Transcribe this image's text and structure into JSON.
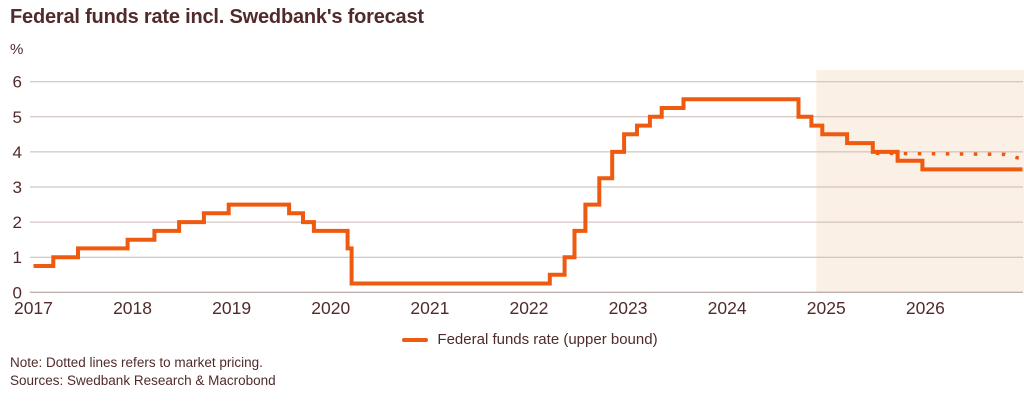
{
  "header": {
    "title": "Federal funds rate incl. Swedbank's forecast",
    "unit_label": "%"
  },
  "legend": {
    "items": [
      {
        "label": "Federal funds rate (upper bound)",
        "style": "solid",
        "color": "#EE5A0F"
      }
    ]
  },
  "notes": {
    "note": "Note: Dotted lines refers to market pricing.",
    "sources": "Sources: Swedbank Research & Macrobond"
  },
  "colors": {
    "accent_orange": "#EE5A0F",
    "text_brown": "#512B2B",
    "gridline": "#C9B9B5",
    "zero_line": "#A5938F",
    "forecast_fill": "#FAF0E5",
    "background": "#FFFFFF"
  },
  "chart_data": {
    "type": "line",
    "title": "Federal funds rate incl. Swedbank's forecast",
    "ylabel": "%",
    "ylim": [
      0,
      6
    ],
    "yticks": [
      0,
      1,
      2,
      3,
      4,
      5,
      6
    ],
    "xticks": [
      2017,
      2018,
      2019,
      2020,
      2021,
      2022,
      2023,
      2024,
      2025,
      2026
    ],
    "x_range": [
      2017.0,
      2026.98
    ],
    "grid": true,
    "legend_position": "bottom-center",
    "forecast_region": {
      "start": 2024.9,
      "end": 2026.98
    },
    "series": [
      {
        "name": "Federal funds rate (upper bound)",
        "style": "solid-step",
        "color": "#EE5A0F",
        "points": [
          [
            2017.0,
            0.75
          ],
          [
            2017.2,
            1.0
          ],
          [
            2017.45,
            1.25
          ],
          [
            2017.95,
            1.5
          ],
          [
            2018.22,
            1.75
          ],
          [
            2018.47,
            2.0
          ],
          [
            2018.72,
            2.25
          ],
          [
            2018.97,
            2.5
          ],
          [
            2019.58,
            2.25
          ],
          [
            2019.72,
            2.0
          ],
          [
            2019.83,
            1.75
          ],
          [
            2020.17,
            1.25
          ],
          [
            2020.21,
            0.25
          ],
          [
            2022.21,
            0.5
          ],
          [
            2022.36,
            1.0
          ],
          [
            2022.46,
            1.75
          ],
          [
            2022.57,
            2.5
          ],
          [
            2022.71,
            3.25
          ],
          [
            2022.84,
            4.0
          ],
          [
            2022.96,
            4.5
          ],
          [
            2023.09,
            4.75
          ],
          [
            2023.22,
            5.0
          ],
          [
            2023.34,
            5.25
          ],
          [
            2023.56,
            5.5
          ],
          [
            2024.72,
            5.0
          ],
          [
            2024.85,
            4.75
          ],
          [
            2024.96,
            4.5
          ],
          [
            2025.21,
            4.25
          ],
          [
            2025.47,
            4.0
          ],
          [
            2025.72,
            3.75
          ],
          [
            2025.97,
            3.5
          ],
          [
            2026.98,
            3.5
          ]
        ]
      },
      {
        "name": "Market pricing (dotted)",
        "style": "dotted",
        "color": "#EE5A0F",
        "points": [
          [
            2025.5,
            3.96
          ],
          [
            2026.8,
            3.93
          ],
          [
            2026.97,
            3.8
          ]
        ]
      }
    ]
  }
}
